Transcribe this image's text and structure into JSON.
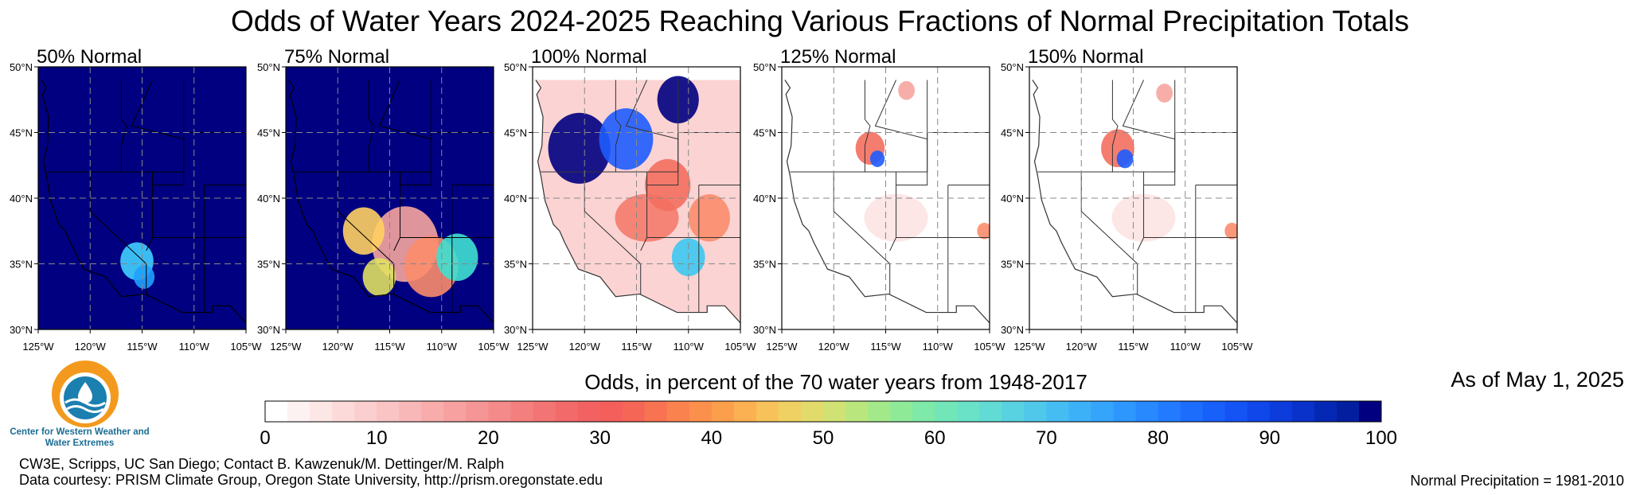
{
  "figure": {
    "title": "Odds of Water Years 2024-2025 Reaching Various Fractions of Normal Precipitation Totals",
    "as_of": "As of May 1, 2025",
    "normal_period": "Normal Precipitation = 1981-2010",
    "credit_line1": "CW3E, Scripps, UC San Diego; Contact B. Kawzenuk/M. Dettinger/M. Ralph",
    "credit_line2": "Data courtesy: PRISM Climate Group, Oregon State University, http://prism.oregonstate.edu",
    "logo_text": "Center for Western Weather and Water Extremes"
  },
  "panels": [
    {
      "title": "50% Normal",
      "ocean": "#000080",
      "land": "#000080",
      "hot": "#000080",
      "blobs": [
        {
          "lon": -115.5,
          "lat": 35.2,
          "r": 1.6,
          "color": "#40d0ff"
        },
        {
          "lon": -114.8,
          "lat": 34.0,
          "r": 1.0,
          "color": "#20a0ff"
        }
      ]
    },
    {
      "title": "75% Normal",
      "ocean": "#000080",
      "land": "#000080",
      "hot": "#fb8c6c",
      "blobs": [
        {
          "lon": -113.5,
          "lat": 36.5,
          "r": 3.2,
          "color": "#f7a59f"
        },
        {
          "lon": -111.0,
          "lat": 34.8,
          "r": 2.6,
          "color": "#fb8c6c"
        },
        {
          "lon": -117.5,
          "lat": 37.5,
          "r": 2.0,
          "color": "#ffd060"
        },
        {
          "lon": -108.5,
          "lat": 35.5,
          "r": 2.0,
          "color": "#40e0d0"
        },
        {
          "lon": -116.0,
          "lat": 34.0,
          "r": 1.6,
          "color": "#e0e060"
        }
      ]
    },
    {
      "title": "100% Normal",
      "ocean": "#ffffff",
      "land": "#fbd3d3",
      "hot": "#f46f5f",
      "blobs": [
        {
          "lon": -120.5,
          "lat": 43.8,
          "r": 3.0,
          "color": "#000080"
        },
        {
          "lon": -116.0,
          "lat": 44.5,
          "r": 2.6,
          "color": "#1e5cff"
        },
        {
          "lon": -111.0,
          "lat": 47.5,
          "r": 2.0,
          "color": "#000080"
        },
        {
          "lon": -112.0,
          "lat": 41.0,
          "r": 2.2,
          "color": "#f46f5f"
        },
        {
          "lon": -108.0,
          "lat": 38.5,
          "r": 2.0,
          "color": "#fb8c6c"
        },
        {
          "lon": -110.0,
          "lat": 35.5,
          "r": 1.6,
          "color": "#3cc8f0"
        }
      ]
    },
    {
      "title": "125% Normal",
      "ocean": "#ffffff",
      "land": "#ffffff",
      "hot": "#fde0e0",
      "blobs": [
        {
          "lon": -116.5,
          "lat": 43.8,
          "r": 1.4,
          "color": "#f46f5f"
        },
        {
          "lon": -115.8,
          "lat": 43.0,
          "r": 0.7,
          "color": "#1e5cff"
        },
        {
          "lon": -113.0,
          "lat": 48.2,
          "r": 0.8,
          "color": "#f7a59f"
        },
        {
          "lon": -105.5,
          "lat": 37.5,
          "r": 0.7,
          "color": "#fb8c6c"
        }
      ]
    },
    {
      "title": "150% Normal",
      "ocean": "#ffffff",
      "land": "#ffffff",
      "hot": "#fde0e0",
      "blobs": [
        {
          "lon": -116.5,
          "lat": 43.8,
          "r": 1.6,
          "color": "#f46f5f"
        },
        {
          "lon": -115.8,
          "lat": 43.0,
          "r": 0.8,
          "color": "#1e5cff"
        },
        {
          "lon": -112.0,
          "lat": 48.0,
          "r": 0.8,
          "color": "#f7a59f"
        },
        {
          "lon": -105.5,
          "lat": 37.5,
          "r": 0.7,
          "color": "#fb8c6c"
        }
      ]
    }
  ],
  "axes": {
    "lat_ticks": [
      {
        "value": 50,
        "label": "50°N"
      },
      {
        "value": 45,
        "label": "45°N"
      },
      {
        "value": 40,
        "label": "40°N"
      },
      {
        "value": 35,
        "label": "35°N"
      },
      {
        "value": 30,
        "label": "30°N"
      }
    ],
    "lon_ticks": [
      {
        "value": -125,
        "label": "125°W"
      },
      {
        "value": -120,
        "label": "120°W"
      },
      {
        "value": -115,
        "label": "115°W"
      },
      {
        "value": -110,
        "label": "110°W"
      },
      {
        "value": -105,
        "label": "105°W"
      }
    ],
    "lat_range": [
      30,
      50
    ],
    "lon_range": [
      -125,
      -105
    ]
  },
  "colorbar": {
    "title": "Odds, in percent of the 70 water years from 1948-2017",
    "min": 0,
    "max": 100,
    "tick_values": [
      0,
      10,
      20,
      30,
      40,
      50,
      60,
      70,
      80,
      90,
      100
    ],
    "tick_labels": [
      "0",
      "10",
      "20",
      "30",
      "40",
      "50",
      "60",
      "70",
      "80",
      "90",
      "100"
    ],
    "colors": [
      "#ffffff",
      "#fdf2f2",
      "#fde6e6",
      "#fcdada",
      "#fbcfcf",
      "#fac4c4",
      "#f9b8b8",
      "#f8acac",
      "#f7a1a1",
      "#f69595",
      "#f58a8a",
      "#f47f7f",
      "#f37474",
      "#f26a6a",
      "#f26262",
      "#f45f5b",
      "#f66656",
      "#f87352",
      "#fa824e",
      "#fb904c",
      "#fc9f4c",
      "#fbb052",
      "#f7c25a",
      "#efd063",
      "#e2db6c",
      "#d0e274",
      "#bae67e",
      "#a3e98a",
      "#8fea98",
      "#7ee9a8",
      "#72e6b8",
      "#69e2c7",
      "#61dbd4",
      "#58d2e0",
      "#4fc8ea",
      "#46bdf2",
      "#3db1f8",
      "#35a4fb",
      "#2e97fd",
      "#2889fe",
      "#227bfe",
      "#1d6dfd",
      "#1860fa",
      "#1453f4",
      "#1047ea",
      "#0c3cdc",
      "#0832c9",
      "#0528b4",
      "#031f9f",
      "#000080"
    ]
  }
}
